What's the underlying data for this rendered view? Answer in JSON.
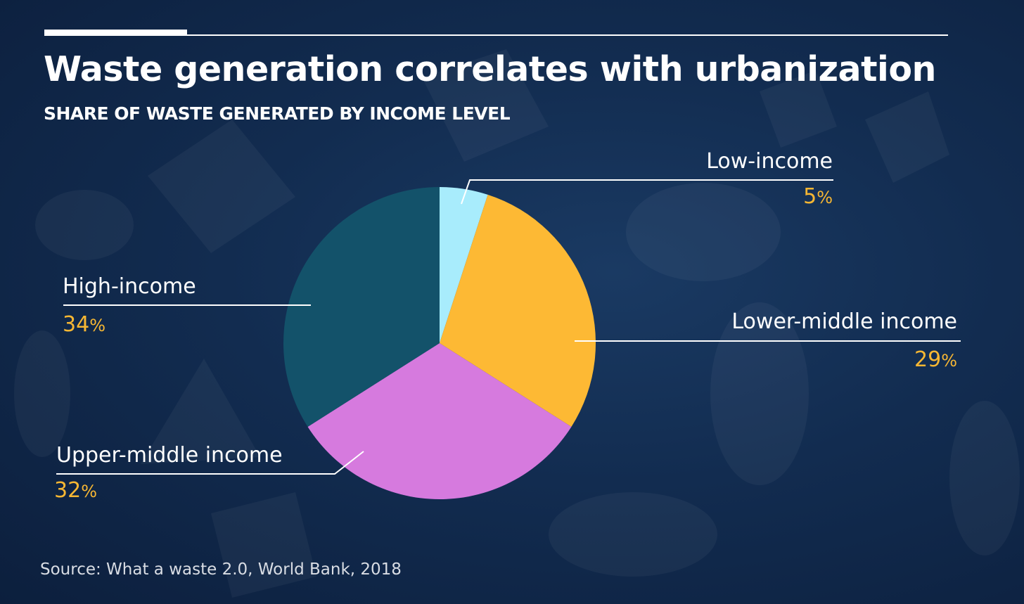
{
  "header": {
    "title": "Waste generation correlates with urbanization",
    "subtitle": "SHARE OF WASTE GENERATED BY INCOME LEVEL"
  },
  "colors": {
    "label_value": "#f7b733",
    "background": "#122c50"
  },
  "chart_data": {
    "type": "pie",
    "title": "Waste generation correlates with urbanization",
    "subtitle": "SHARE OF WASTE GENERATED BY INCOME LEVEL",
    "start_angle_deg": 0,
    "direction": "clockwise",
    "slices": [
      {
        "label": "Low-income",
        "value": 5,
        "value_text": "5",
        "unit": "%",
        "color": "#a8ecfc"
      },
      {
        "label": "Lower-middle income",
        "value": 29,
        "value_text": "29",
        "unit": "%",
        "color": "#fdb934"
      },
      {
        "label": "Upper-middle income",
        "value": 32,
        "value_text": "32",
        "unit": "%",
        "color": "#d67ade"
      },
      {
        "label": "High-income",
        "value": 34,
        "value_text": "34",
        "unit": "%",
        "color": "#13526a"
      }
    ]
  },
  "footer": {
    "source": "Source: What a waste 2.0, World Bank, 2018"
  }
}
